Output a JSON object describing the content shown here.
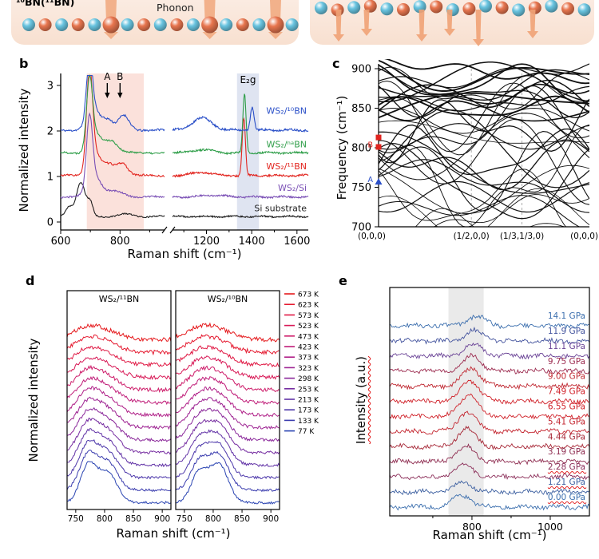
{
  "panel_a": {
    "isotope_label": "¹⁰BN(¹¹BN)",
    "phonon_label": "Phonon",
    "nitrogen_color": "#69c4e0",
    "boron_color": "#e8764f",
    "arrow_color": "#f0a276",
    "atoms_per_chain": 17
  },
  "chart_data": [
    {
      "id": "panel-b",
      "panel_letter": "b",
      "type": "line",
      "title": "",
      "xlabel": "Raman shift (cm⁻¹)",
      "ylabel": "Normalized intensity",
      "xlim": [
        600,
        1650
      ],
      "x_break": [
        950,
        1050
      ],
      "ylim": [
        -0.3,
        3.3
      ],
      "xticks": [
        600,
        800,
        1200,
        1400,
        1600
      ],
      "minor_xticks": [
        700,
        900,
        1100,
        1300,
        1500
      ],
      "yticks": [
        0,
        1,
        2,
        3
      ],
      "shaded_regions": [
        {
          "x1": 688,
          "x2": 880,
          "color": "#f4a898",
          "opacity": 0.35,
          "label": ""
        },
        {
          "x1": 1335,
          "x2": 1432,
          "color": "#b8c4e0",
          "opacity": 0.45,
          "label": "E₂g"
        }
      ],
      "peak_annotations": [
        {
          "text": "A",
          "x": 757
        },
        {
          "text": "B",
          "x": 800
        }
      ],
      "series": [
        {
          "name": "WS₂/¹⁰BN",
          "color": "#2b50c8",
          "offset": 2.02,
          "label_v": 2.38,
          "noise": 0.022,
          "seed": 11,
          "peaks": [
            [
              697,
              10,
              1.35
            ],
            [
              716,
              22,
              0.42
            ],
            [
              762,
              15,
              0.2
            ],
            [
              812,
              18,
              0.32
            ],
            [
              1180,
              42,
              0.27
            ],
            [
              1402,
              8,
              0.5
            ]
          ]
        },
        {
          "name": "WS₂/ⁿᵃBN",
          "color": "#2f9e49",
          "offset": 1.52,
          "label_v": 1.64,
          "noise": 0.02,
          "seed": 22,
          "peaks": [
            [
              697,
              10,
              1.45
            ],
            [
              716,
              20,
              0.4
            ],
            [
              770,
              22,
              0.27
            ],
            [
              1180,
              45,
              0.07
            ],
            [
              1368,
              7,
              1.28
            ]
          ]
        },
        {
          "name": "WS₂/¹¹BN",
          "color": "#e2251f",
          "offset": 1.02,
          "label_v": 1.16,
          "noise": 0.02,
          "seed": 33,
          "peaks": [
            [
              697,
              10,
              2.1
            ],
            [
              716,
              20,
              0.5
            ],
            [
              765,
              17,
              0.22
            ],
            [
              808,
              18,
              0.28
            ],
            [
              1180,
              45,
              0.07
            ],
            [
              1365,
              7,
              1.25
            ]
          ]
        },
        {
          "name": "WS₂/Si",
          "color": "#7a4fb5",
          "offset": 0.55,
          "label_v": 0.68,
          "noise": 0.018,
          "seed": 44,
          "peaks": [
            [
              697,
              10,
              1.5
            ],
            [
              714,
              22,
              0.45
            ],
            [
              783,
              30,
              0.12
            ],
            [
              1230,
              45,
              0.04
            ]
          ]
        },
        {
          "name": "Si substrate",
          "color": "#1c1c1c",
          "offset": 0.12,
          "label_v": 0.24,
          "noise": 0.015,
          "seed": 55,
          "peaks": [
            [
              628,
              12,
              0.22
            ],
            [
              668,
              15,
              0.75
            ],
            [
              700,
              9,
              0.28
            ],
            [
              820,
              25,
              0.05
            ]
          ]
        }
      ]
    },
    {
      "id": "panel-c",
      "panel_letter": "c",
      "type": "line",
      "title": "",
      "xlabel": "",
      "ylabel": "Frequency (cm⁻¹)",
      "ylim": [
        700,
        900
      ],
      "yticks": [
        700,
        750,
        800,
        850,
        900
      ],
      "xtick_labels": [
        "(0,0,0)",
        "(1/2,0,0)",
        "(1/3,1/3,0)",
        "(0,0,0)"
      ],
      "xtick_pos": [
        0,
        0.44,
        0.68,
        1
      ],
      "band_color": "#111111",
      "seed": 7,
      "band_groups": [
        [
          8,
          700,
          756,
          12,
          34,
          0.9
        ],
        [
          16,
          750,
          852,
          18,
          46,
          0.95
        ],
        [
          14,
          845,
          898,
          8,
          24,
          1.35
        ]
      ],
      "markers": [
        {
          "shape": "triangle",
          "color": "#2b50c8",
          "freq": 757,
          "label": "A"
        },
        {
          "shape": "square",
          "color": "#e0241f",
          "freq": 801,
          "label": "B"
        },
        {
          "shape": "square",
          "color": "#e0241f",
          "freq": 813,
          "label": ""
        }
      ]
    },
    {
      "id": "panel-d",
      "panel_letter": "d",
      "type": "line",
      "title": "",
      "xlabel": "Raman shift (cm⁻¹)",
      "ylabel": "Normalized intensity",
      "xlim": [
        735,
        915
      ],
      "xticks": [
        750,
        800,
        850,
        900
      ],
      "legend_position": "right",
      "temperatures_K": [
        673,
        623,
        573,
        523,
        473,
        423,
        373,
        323,
        298,
        253,
        213,
        173,
        133,
        77
      ],
      "legend_labels": [
        "673 K",
        "623 K",
        "573 K",
        "523 K",
        "473 K",
        "423 K",
        "373 K",
        "323 K",
        "298 K",
        "253 K",
        "213 K",
        "173 K",
        "133 K",
        "77 K"
      ],
      "temp_colors": [
        "#e51a1d",
        "#e51a30",
        "#e01944",
        "#d81a57",
        "#cd1b69",
        "#c01d79",
        "#b02088",
        "#9e2493",
        "#8b299b",
        "#762da1",
        "#6132a6",
        "#4c37aa",
        "#3a3cae",
        "#2a44b2"
      ],
      "spacing": 0.52,
      "panels": [
        {
          "title": "WS₂/¹¹BN",
          "peak1": 772,
          "peak2": 806,
          "amp1": 1.0,
          "amp2": 0.78,
          "seed": 101
        },
        {
          "title": "WS₂/¹⁰BN",
          "peak1": 776,
          "peak2": 810,
          "amp1": 0.8,
          "amp2": 1.0,
          "seed": 202
        }
      ]
    },
    {
      "id": "panel-e",
      "panel_letter": "e",
      "type": "line",
      "title": "",
      "xlabel": "Raman shift (cm⁻¹)",
      "ylabel": "Intensity (a.u.)",
      "xlim": [
        590,
        1100
      ],
      "xticks": [
        800,
        1000
      ],
      "minor_xticks": [
        700,
        900
      ],
      "labels_position": "right",
      "shaded_region": {
        "x1": 740,
        "x2": 830,
        "color": "#d9d9d9",
        "opacity": 0.55
      },
      "spacing": 0.8,
      "seed": 303,
      "peak_base": 775,
      "peak_shift_per_gpa": 2.6,
      "pressure_values_gpa": [
        14.1,
        11.9,
        11.1,
        9.75,
        9.0,
        7.49,
        6.55,
        5.41,
        4.44,
        3.19,
        2.28,
        1.21,
        0.0
      ],
      "pressures": [
        {
          "label": "14.1 GPa",
          "color": "#3c6fae",
          "amp": 0.5,
          "underline": false
        },
        {
          "label": "11.9 GPa",
          "color": "#44549e",
          "amp": 0.55,
          "underline": false
        },
        {
          "label": "11.1 GPa",
          "color": "#6a4396",
          "amp": 0.6,
          "underline": false
        },
        {
          "label": "9.75 GPa",
          "color": "#9c2c50",
          "amp": 0.8,
          "underline": false
        },
        {
          "label": "9.00 GPa",
          "color": "#c02a33",
          "amp": 0.95,
          "underline": false
        },
        {
          "label": "7.49 GPa",
          "color": "#d02028",
          "amp": 1.1,
          "underline": false
        },
        {
          "label": "6.55 GPa",
          "color": "#d02028",
          "amp": 1.15,
          "underline": false
        },
        {
          "label": "5.41 GPa",
          "color": "#c3242e",
          "amp": 1.05,
          "underline": false
        },
        {
          "label": "4.44 GPa",
          "color": "#a72837",
          "amp": 0.95,
          "underline": false
        },
        {
          "label": "3.19 GPa",
          "color": "#8e2c50",
          "amp": 0.8,
          "underline": false
        },
        {
          "label": "2.28 GPa",
          "color": "#8c2f5a",
          "amp": 0.6,
          "underline": true
        },
        {
          "label": "1.21 GPa",
          "color": "#3c5fa0",
          "amp": 0.5,
          "underline": true
        },
        {
          "label": "0.00 GPa",
          "color": "#3c6fae",
          "amp": 0.6,
          "underline": true
        }
      ]
    }
  ]
}
